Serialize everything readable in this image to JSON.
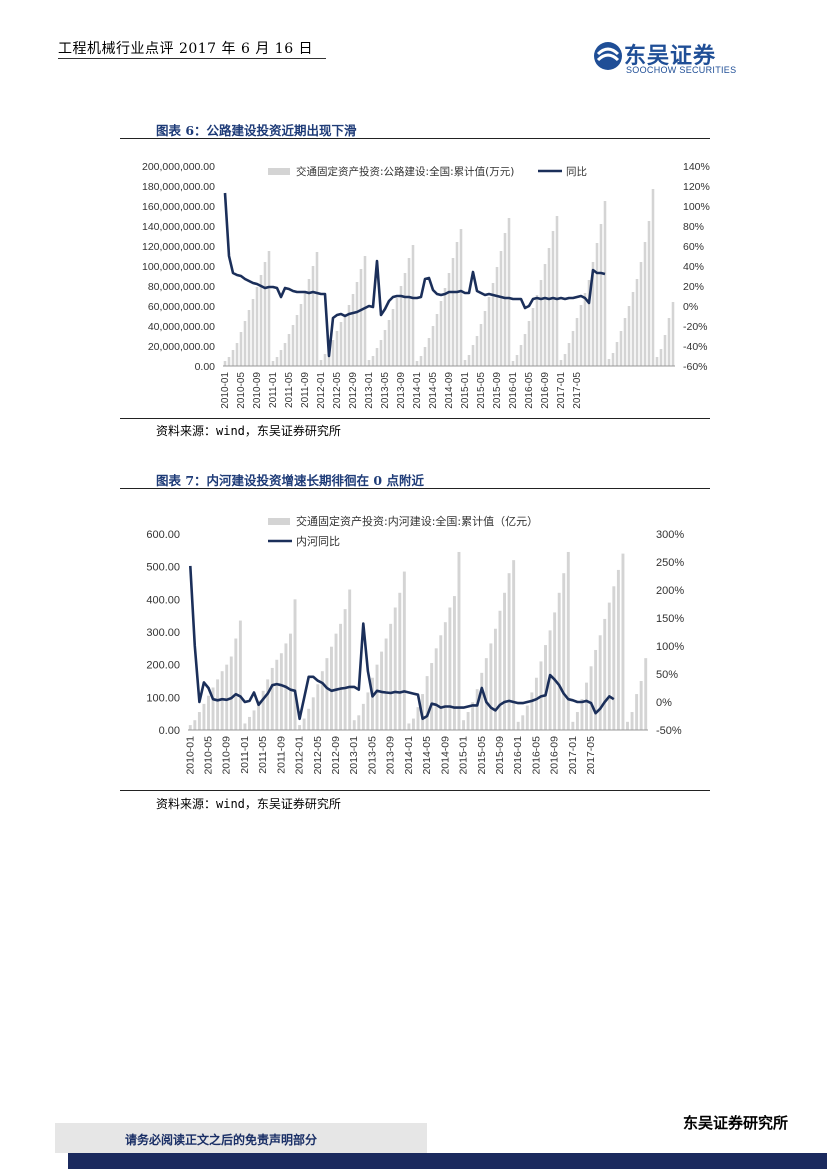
{
  "header": {
    "title": "工程机械行业点评 2017 年 6 月 16 日",
    "logo_cn": "东吴证券",
    "logo_en": "SOOCHOW SECURITIES",
    "logo_mark": "SCS",
    "brand_color": "#1f4e96"
  },
  "figures": [
    {
      "title": "图表 6：公路建设投资近期出现下滑",
      "source": "资料来源：wind，东吴证券研究所"
    },
    {
      "title": "图表 7：内河建设投资增速长期徘徊在 0 点附近",
      "source": "资料来源：wind，东吴证券研究所"
    }
  ],
  "footer": {
    "note": "请务必阅读正文之后的免责声明部分",
    "brand": "东吴证券研究所"
  },
  "chart_data": [
    {
      "type": "bar",
      "combo": "bar+line",
      "x_ticks": [
        "2010-01",
        "2010-05",
        "2010-09",
        "2011-01",
        "2011-05",
        "2011-09",
        "2012-01",
        "2012-05",
        "2012-09",
        "2013-01",
        "2013-05",
        "2013-09",
        "2014-01",
        "2014-05",
        "2014-09",
        "2015-01",
        "2015-05",
        "2015-09",
        "2016-01",
        "2016-05",
        "2016-09",
        "2017-01",
        "2017-05"
      ],
      "y_ticks": [
        "0.00",
        "20,000,000.00",
        "40,000,000.00",
        "60,000,000.00",
        "80,000,000.00",
        "100,000,000.00",
        "120,000,000.00",
        "140,000,000.00",
        "160,000,000.00",
        "180,000,000.00",
        "200,000,000.00"
      ],
      "y2_ticks": [
        "-60%",
        "-40%",
        "-20%",
        "0%",
        "20%",
        "40%",
        "60%",
        "80%",
        "100%",
        "120%",
        "140%"
      ],
      "ylim": [
        0,
        200000000
      ],
      "y2lim": [
        -60,
        140
      ],
      "legend": [
        "交通固定资产投资:公路建设:全国:累计值(万元)",
        "同比"
      ],
      "legend_position": "top",
      "series": [
        {
          "name": "交通固定资产投资:公路建设:全国:累计值(万元)",
          "type": "bar",
          "color": "#d4d4d4",
          "values": [
            5000000,
            9000000,
            16000000,
            23000000,
            34000000,
            45000000,
            56000000,
            67000000,
            79000000,
            91000000,
            104000000,
            115000000,
            5000000,
            9000000,
            16000000,
            23000000,
            32000000,
            41000000,
            51000000,
            62000000,
            74000000,
            87000000,
            100000000,
            114000000,
            6000000,
            12000000,
            19000000,
            26000000,
            35000000,
            44000000,
            52000000,
            61000000,
            72000000,
            84000000,
            97000000,
            110000000,
            6000000,
            10000000,
            18000000,
            26000000,
            36000000,
            46000000,
            57000000,
            68000000,
            80000000,
            93000000,
            108000000,
            121000000,
            5000000,
            10000000,
            19000000,
            28000000,
            40000000,
            52000000,
            65000000,
            78000000,
            93000000,
            108000000,
            124000000,
            137000000,
            6000000,
            11000000,
            21000000,
            30000000,
            42000000,
            55000000,
            69000000,
            83000000,
            99000000,
            115000000,
            133000000,
            148000000,
            5000000,
            11000000,
            21000000,
            32000000,
            45000000,
            58000000,
            71000000,
            86000000,
            102000000,
            118000000,
            135000000,
            150000000,
            6000000,
            12000000,
            23000000,
            35000000,
            48000000,
            61000000,
            73000000,
            86000000,
            104000000,
            123000000,
            142000000,
            165000000,
            7000000,
            13000000,
            24000000,
            35000000,
            48000000,
            60000000,
            74000000,
            87000000,
            104000000,
            124000000,
            145000000,
            177000000,
            9000000,
            17000000,
            31000000,
            48000000,
            64000000
          ]
        },
        {
          "name": "同比",
          "type": "line",
          "color": "#1b2f5a",
          "axis": "right",
          "values": [
            113,
            50,
            33,
            31,
            30,
            27,
            25,
            23,
            22,
            20,
            18,
            19,
            19,
            18,
            9,
            18,
            17,
            15,
            14,
            14,
            14,
            13,
            14,
            13,
            12,
            12,
            -50,
            -12,
            -9,
            -8,
            -10,
            -8,
            -7,
            -6,
            -4,
            -2,
            0,
            -1,
            45,
            -9,
            -3,
            5,
            9,
            10,
            10,
            9,
            9,
            8,
            8,
            9,
            27,
            28,
            16,
            12,
            11,
            12,
            14,
            14,
            14,
            15,
            13,
            13,
            34,
            15,
            13,
            11,
            12,
            11,
            10,
            9,
            8,
            8,
            7,
            7,
            7,
            -2,
            0,
            7,
            8,
            7,
            8,
            7,
            8,
            7,
            8,
            7,
            8,
            8,
            9,
            10,
            8,
            3,
            36,
            33,
            33,
            32
          ]
        }
      ]
    },
    {
      "type": "bar",
      "combo": "bar+line",
      "x_ticks": [
        "2010-01",
        "2010-05",
        "2010-09",
        "2011-01",
        "2011-05",
        "2011-09",
        "2012-01",
        "2012-05",
        "2012-09",
        "2013-01",
        "2013-05",
        "2013-09",
        "2014-01",
        "2014-05",
        "2014-09",
        "2015-01",
        "2015-05",
        "2015-09",
        "2016-01",
        "2016-05",
        "2016-09",
        "2017-01",
        "2017-05"
      ],
      "y_ticks": [
        "0.00",
        "100.00",
        "200.00",
        "300.00",
        "400.00",
        "500.00",
        "600.00"
      ],
      "y2_ticks": [
        "-50%",
        "0%",
        "50%",
        "100%",
        "150%",
        "200%",
        "250%",
        "300%"
      ],
      "ylim": [
        0,
        600
      ],
      "y2lim": [
        -50,
        300
      ],
      "legend": [
        "交通固定资产投资:内河建设:全国:累计值（亿元）",
        "内河同比"
      ],
      "legend_position": "top",
      "series": [
        {
          "name": "交通固定资产投资:内河建设:全国:累计值（亿元）",
          "type": "bar",
          "color": "#d4d4d4",
          "values": [
            15,
            30,
            55,
            80,
            105,
            130,
            155,
            180,
            200,
            225,
            280,
            335,
            20,
            40,
            60,
            90,
            120,
            155,
            190,
            215,
            235,
            265,
            295,
            400,
            15,
            35,
            65,
            100,
            140,
            180,
            220,
            255,
            295,
            325,
            370,
            430,
            30,
            45,
            80,
            115,
            160,
            200,
            240,
            280,
            325,
            375,
            420,
            485,
            20,
            35,
            70,
            110,
            165,
            205,
            250,
            290,
            330,
            375,
            410,
            545,
            30,
            55,
            85,
            125,
            175,
            220,
            265,
            310,
            365,
            420,
            480,
            520,
            25,
            45,
            75,
            115,
            160,
            210,
            260,
            305,
            360,
            420,
            480,
            545,
            25,
            55,
            95,
            145,
            195,
            245,
            290,
            340,
            390,
            440,
            490,
            540,
            25,
            55,
            110,
            150,
            220
          ]
        },
        {
          "name": "内河同比",
          "type": "line",
          "color": "#1b2f5a",
          "axis": "right",
          "values": [
            243,
            100,
            0,
            35,
            25,
            5,
            3,
            5,
            4,
            7,
            14,
            10,
            0,
            2,
            17,
            -5,
            5,
            15,
            30,
            32,
            30,
            27,
            22,
            20,
            -30,
            7,
            45,
            45,
            38,
            34,
            25,
            20,
            22,
            24,
            25,
            27,
            27,
            22,
            140,
            55,
            10,
            20,
            18,
            17,
            16,
            18,
            17,
            19,
            17,
            15,
            13,
            -30,
            -25,
            -3,
            -5,
            -10,
            -8,
            -8,
            -10,
            -10,
            -10,
            -8,
            -6,
            -6,
            25,
            0,
            -10,
            -15,
            -5,
            0,
            2,
            0,
            -2,
            -2,
            0,
            2,
            5,
            10,
            12,
            48,
            40,
            30,
            15,
            5,
            3,
            0,
            0,
            2,
            -2,
            -20,
            -12,
            0,
            10,
            5
          ]
        }
      ]
    }
  ]
}
